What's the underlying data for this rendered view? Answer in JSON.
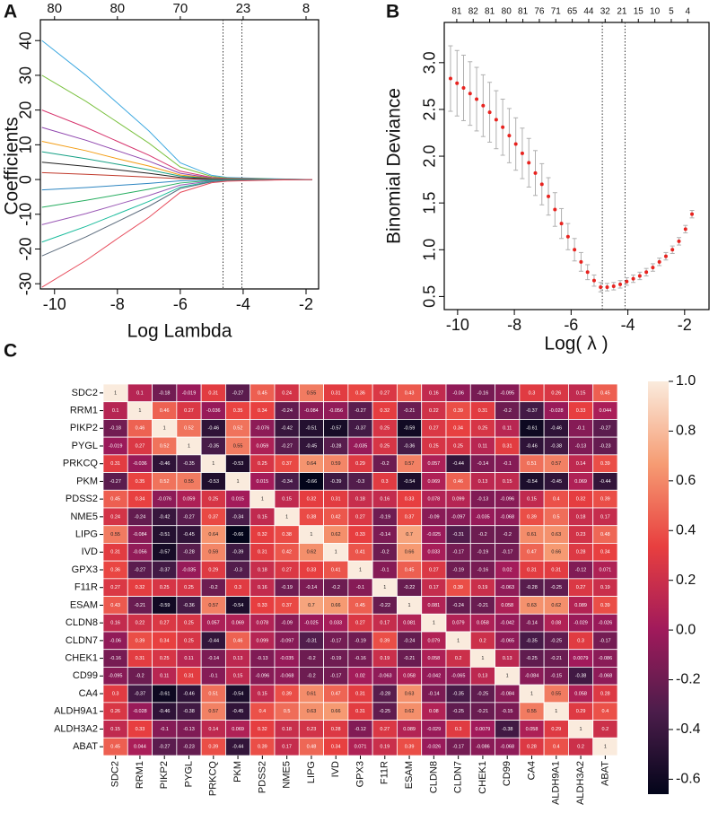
{
  "chart_data": [
    {
      "type": "line",
      "panel_label": "A",
      "xlabel": "Log Lambda",
      "ylabel": "Coefficients",
      "xlim": [
        -10.45,
        -1.6
      ],
      "ylim": [
        -31.5,
        46
      ],
      "xticks": [
        -10,
        -8,
        -6,
        -4,
        -2
      ],
      "yticks": [
        -30,
        -20,
        -10,
        0,
        10,
        20,
        30,
        40
      ],
      "top_ticks": [
        {
          "value": -10,
          "label": "80"
        },
        {
          "value": -8,
          "label": "80"
        },
        {
          "value": -6,
          "label": "70"
        },
        {
          "value": -4,
          "label": "23"
        },
        {
          "value": -2,
          "label": "8"
        }
      ],
      "vlines": [
        -4.64,
        -4.04
      ],
      "x": [
        -10.4,
        -9,
        -8,
        -7,
        -6,
        -5,
        -4.5,
        -3,
        -1.8
      ],
      "series": [
        {
          "color": "#3fa9e0",
          "values": [
            40,
            30,
            22,
            14,
            4.8,
            1.2,
            0.6,
            0.2,
            0
          ]
        },
        {
          "color": "#7cc242",
          "values": [
            30,
            22.5,
            16.5,
            10.5,
            3.6,
            0.9,
            0.45,
            0.15,
            0
          ]
        },
        {
          "color": "#d6336c",
          "values": [
            20,
            15,
            11,
            7,
            2.4,
            0.6,
            0.3,
            0.1,
            0
          ]
        },
        {
          "color": "#8e44ad",
          "values": [
            15,
            11.3,
            8.3,
            5.3,
            1.8,
            0.45,
            0.23,
            0.08,
            0
          ]
        },
        {
          "color": "#f39c12",
          "values": [
            11,
            8.3,
            6,
            3.9,
            1.3,
            0.33,
            0.17,
            0.06,
            0
          ]
        },
        {
          "color": "#16a085",
          "values": [
            8,
            6,
            4.4,
            2.8,
            1,
            0.24,
            0.12,
            0.04,
            0
          ]
        },
        {
          "color": "#222222",
          "values": [
            5,
            3.8,
            2.8,
            1.8,
            0.6,
            0.15,
            0.08,
            0.03,
            0
          ]
        },
        {
          "color": "#c0392b",
          "values": [
            2,
            1.5,
            1.1,
            0.7,
            0.24,
            0.06,
            0.03,
            0.01,
            0
          ]
        },
        {
          "color": "#2e86c1",
          "values": [
            -3,
            -2.3,
            -1.7,
            -1.1,
            -0.36,
            -0.09,
            -0.05,
            -0.02,
            0
          ]
        },
        {
          "color": "#27ae60",
          "values": [
            -8,
            -6,
            -4.4,
            -2.8,
            -1,
            -0.24,
            -0.12,
            -0.04,
            0
          ]
        },
        {
          "color": "#9b59b6",
          "values": [
            -13,
            -9.8,
            -7.2,
            -4.6,
            -1.6,
            -0.39,
            -0.2,
            -0.07,
            0
          ]
        },
        {
          "color": "#1abc9c",
          "values": [
            -18,
            -13.5,
            -9.9,
            -6.3,
            -2.2,
            -0.54,
            -0.27,
            -0.09,
            0
          ]
        },
        {
          "color": "#5d6d7e",
          "values": [
            -22,
            -16.5,
            -12.1,
            -7.7,
            -2.6,
            -0.66,
            -0.33,
            -0.11,
            0
          ]
        },
        {
          "color": "#e74c5c",
          "values": [
            -31,
            -23.3,
            -17,
            -10.9,
            -3.7,
            -0.93,
            -0.47,
            -0.16,
            0
          ]
        }
      ]
    },
    {
      "type": "errorbar",
      "panel_label": "B",
      "xlabel": "Log( λ )",
      "ylabel": "Binomial Deviance",
      "xlim": [
        -10.47,
        -1.14
      ],
      "ylim": [
        0.36,
        3.43
      ],
      "xticks": [
        -10,
        -8,
        -6,
        -4,
        -2
      ],
      "yticks": [
        {
          "value": 0.5,
          "label": "0.5"
        },
        {
          "value": 1,
          "label": "1.0"
        },
        {
          "value": 1.5,
          "label": "1.5"
        },
        {
          "value": 2,
          "label": "2.0"
        },
        {
          "value": 2.5,
          "label": "2.5"
        },
        {
          "value": 3,
          "label": "3.0"
        }
      ],
      "top_ticks": [
        {
          "value": -10.03,
          "label": "81"
        },
        {
          "value": -9.45,
          "label": "82"
        },
        {
          "value": -8.87,
          "label": "81"
        },
        {
          "value": -8.28,
          "label": "80"
        },
        {
          "value": -7.7,
          "label": "81"
        },
        {
          "value": -7.12,
          "label": "76"
        },
        {
          "value": -6.54,
          "label": "71"
        },
        {
          "value": -5.96,
          "label": "65"
        },
        {
          "value": -5.38,
          "label": "44"
        },
        {
          "value": -4.8,
          "label": "32"
        },
        {
          "value": -4.21,
          "label": "21"
        },
        {
          "value": -3.63,
          "label": "15"
        },
        {
          "value": -3.05,
          "label": "10"
        },
        {
          "value": -2.47,
          "label": "5"
        },
        {
          "value": -1.89,
          "label": "4"
        }
      ],
      "vlines": [
        -4.9,
        -4.1
      ],
      "color": "#e8231f",
      "error_color": "#b0b0b0",
      "x": [
        -10.25,
        -10.02,
        -9.79,
        -9.56,
        -9.33,
        -9.1,
        -8.87,
        -8.64,
        -8.41,
        -8.18,
        -7.95,
        -7.72,
        -7.49,
        -7.26,
        -7.03,
        -6.8,
        -6.57,
        -6.34,
        -6.11,
        -5.88,
        -5.65,
        -5.42,
        -5.19,
        -4.96,
        -4.73,
        -4.5,
        -4.27,
        -4.04,
        -3.81,
        -3.58,
        -3.35,
        -3.12,
        -2.89,
        -2.66,
        -2.43,
        -2.2,
        -1.97,
        -1.74
      ],
      "values": [
        2.83,
        2.78,
        2.73,
        2.67,
        2.61,
        2.54,
        2.47,
        2.39,
        2.31,
        2.22,
        2.13,
        2.03,
        1.93,
        1.82,
        1.7,
        1.57,
        1.43,
        1.28,
        1.14,
        1.0,
        0.87,
        0.76,
        0.67,
        0.6,
        0.6,
        0.61,
        0.63,
        0.66,
        0.69,
        0.72,
        0.76,
        0.81,
        0.87,
        0.93,
        1.0,
        1.09,
        1.22,
        1.38
      ],
      "errors": [
        0.35,
        0.35,
        0.35,
        0.34,
        0.34,
        0.33,
        0.32,
        0.31,
        0.3,
        0.29,
        0.28,
        0.27,
        0.26,
        0.24,
        0.22,
        0.2,
        0.18,
        0.16,
        0.14,
        0.12,
        0.1,
        0.08,
        0.06,
        0.05,
        0.04,
        0.04,
        0.04,
        0.04,
        0.04,
        0.04,
        0.04,
        0.04,
        0.04,
        0.04,
        0.04,
        0.04,
        0.04,
        0.04
      ]
    },
    {
      "type": "heatmap",
      "panel_label": "C",
      "labels": [
        "SDC2",
        "RRM1",
        "PIKP2",
        "PYGL",
        "PRKCQ",
        "PKM",
        "PDSS2",
        "NME5",
        "LIPG",
        "IVD",
        "GPX3",
        "F11R",
        "ESAM",
        "CLDN8",
        "CLDN7",
        "CHEK1",
        "CD99",
        "CA4",
        "ALDH9A1",
        "ALDH3A2",
        "ABAT"
      ],
      "matrix": [
        [
          1,
          0.1,
          -0.18,
          -0.019,
          0.31,
          -0.27,
          0.45,
          0.24,
          0.55,
          0.31,
          0.36,
          0.27,
          0.43,
          0.16,
          -0.06,
          -0.16,
          -0.095,
          0.3,
          0.26,
          0.15,
          0.45
        ],
        [
          0.1,
          1,
          0.46,
          0.27,
          -0.036,
          0.35,
          0.34,
          -0.24,
          -0.084,
          -0.056,
          -0.27,
          0.32,
          -0.21,
          0.22,
          0.39,
          0.31,
          -0.2,
          -0.37,
          -0.028,
          0.33,
          0.044
        ],
        [
          -0.18,
          0.46,
          1,
          0.52,
          -0.46,
          0.52,
          -0.076,
          -0.42,
          -0.51,
          -0.57,
          -0.37,
          0.25,
          -0.59,
          0.27,
          0.34,
          0.25,
          0.11,
          -0.61,
          -0.46,
          -0.1,
          -0.27
        ],
        [
          -0.019,
          0.27,
          0.52,
          1,
          -0.35,
          0.55,
          0.059,
          -0.27,
          -0.45,
          -0.28,
          -0.035,
          0.25,
          -0.36,
          0.25,
          0.25,
          0.11,
          0.31,
          -0.46,
          -0.38,
          -0.13,
          -0.23
        ],
        [
          0.31,
          -0.036,
          -0.46,
          -0.35,
          1,
          -0.53,
          0.25,
          0.37,
          0.64,
          0.59,
          0.29,
          -0.2,
          0.57,
          0.057,
          -0.44,
          -0.14,
          -0.1,
          0.51,
          0.57,
          0.14,
          0.39
        ],
        [
          -0.27,
          0.35,
          0.52,
          0.55,
          -0.53,
          1,
          0.015,
          -0.34,
          -0.66,
          -0.39,
          -0.3,
          0.3,
          -0.54,
          0.069,
          0.46,
          0.13,
          0.15,
          -0.54,
          -0.45,
          0.069,
          -0.44
        ],
        [
          0.45,
          0.34,
          -0.076,
          0.059,
          0.25,
          0.015,
          1,
          0.15,
          0.32,
          0.31,
          0.18,
          0.16,
          0.33,
          0.078,
          0.099,
          -0.13,
          -0.096,
          0.15,
          0.4,
          0.32,
          0.39
        ],
        [
          0.24,
          -0.24,
          -0.42,
          -0.27,
          0.37,
          -0.34,
          0.15,
          1,
          0.38,
          0.42,
          0.27,
          -0.19,
          0.37,
          -0.09,
          -0.097,
          -0.035,
          -0.068,
          0.39,
          0.5,
          0.18,
          0.17
        ],
        [
          0.55,
          -0.084,
          -0.51,
          -0.45,
          0.64,
          -0.66,
          0.32,
          0.38,
          1,
          0.62,
          0.33,
          -0.14,
          0.7,
          -0.025,
          -0.31,
          -0.2,
          -0.2,
          0.61,
          0.63,
          0.23,
          0.48
        ],
        [
          0.31,
          -0.056,
          -0.57,
          -0.28,
          0.59,
          -0.39,
          0.31,
          0.42,
          0.62,
          1,
          0.41,
          -0.2,
          0.66,
          0.033,
          -0.17,
          -0.19,
          -0.17,
          0.47,
          0.66,
          0.28,
          0.34
        ],
        [
          0.36,
          -0.27,
          -0.37,
          -0.035,
          0.29,
          -0.3,
          0.18,
          0.27,
          0.33,
          0.41,
          1,
          -0.1,
          0.45,
          0.27,
          -0.19,
          -0.16,
          0.02,
          0.31,
          0.31,
          -0.12,
          0.071
        ],
        [
          0.27,
          0.32,
          0.25,
          0.25,
          -0.2,
          0.3,
          0.16,
          -0.19,
          -0.14,
          -0.2,
          -0.1,
          1,
          -0.22,
          0.17,
          0.39,
          0.19,
          -0.063,
          -0.28,
          -0.25,
          0.27,
          0.19
        ],
        [
          0.43,
          -0.21,
          -0.59,
          -0.36,
          0.57,
          -0.54,
          0.33,
          0.37,
          0.7,
          0.66,
          0.45,
          -0.22,
          1,
          0.081,
          -0.24,
          -0.21,
          0.058,
          0.63,
          0.62,
          0.089,
          0.39
        ],
        [
          0.16,
          0.22,
          0.27,
          0.25,
          0.057,
          0.069,
          0.078,
          -0.09,
          -0.025,
          0.033,
          0.27,
          0.17,
          0.081,
          1,
          0.079,
          0.058,
          -0.042,
          -0.14,
          0.08,
          -0.029,
          -0.026
        ],
        [
          -0.06,
          0.39,
          0.34,
          0.25,
          -0.44,
          0.46,
          0.099,
          -0.097,
          -0.31,
          -0.17,
          -0.19,
          0.39,
          -0.24,
          0.079,
          1,
          0.2,
          -0.065,
          -0.35,
          -0.25,
          0.3,
          -0.17
        ],
        [
          -0.16,
          0.31,
          0.25,
          0.11,
          -0.14,
          0.13,
          -0.13,
          -0.035,
          -0.2,
          -0.19,
          -0.16,
          0.19,
          -0.21,
          0.058,
          0.2,
          1,
          0.13,
          -0.25,
          -0.21,
          0.0079,
          -0.086
        ],
        [
          -0.095,
          -0.2,
          0.11,
          0.31,
          -0.1,
          0.15,
          -0.096,
          -0.068,
          -0.2,
          -0.17,
          0.02,
          -0.063,
          0.058,
          -0.042,
          -0.065,
          0.13,
          1,
          -0.084,
          -0.15,
          -0.38,
          -0.068
        ],
        [
          0.3,
          -0.37,
          -0.61,
          -0.46,
          0.51,
          -0.54,
          0.15,
          0.39,
          0.61,
          0.47,
          0.31,
          -0.28,
          0.63,
          -0.14,
          -0.35,
          -0.25,
          -0.084,
          1,
          0.55,
          0.058,
          0.28
        ],
        [
          0.26,
          -0.028,
          -0.46,
          -0.38,
          0.57,
          -0.45,
          0.4,
          0.5,
          0.63,
          0.66,
          0.31,
          -0.25,
          0.62,
          0.08,
          -0.25,
          -0.21,
          -0.15,
          0.55,
          1,
          0.29,
          0.4
        ],
        [
          0.15,
          0.33,
          -0.1,
          -0.13,
          0.14,
          0.069,
          0.32,
          0.18,
          0.23,
          0.28,
          -0.12,
          0.27,
          0.089,
          -0.029,
          0.3,
          0.0079,
          -0.38,
          0.058,
          0.29,
          1,
          0.2
        ],
        [
          0.45,
          0.044,
          -0.27,
          -0.23,
          0.39,
          -0.44,
          0.39,
          0.17,
          0.48,
          0.34,
          0.071,
          0.19,
          0.39,
          -0.026,
          -0.17,
          -0.086,
          -0.068,
          0.28,
          0.4,
          0.2,
          1
        ]
      ],
      "clim": [
        -0.66,
        1
      ],
      "colormap": [
        "#03051a",
        "#4c1d4b",
        "#a11a5b",
        "#e83f3f",
        "#f69c73",
        "#faebdd"
      ],
      "cbar_ticks": [
        {
          "value": 1,
          "label": "1.0"
        },
        0.8,
        0.6,
        0.4,
        0.2,
        {
          "value": 0,
          "label": "0.0"
        },
        -0.2,
        -0.4,
        -0.6
      ]
    }
  ]
}
